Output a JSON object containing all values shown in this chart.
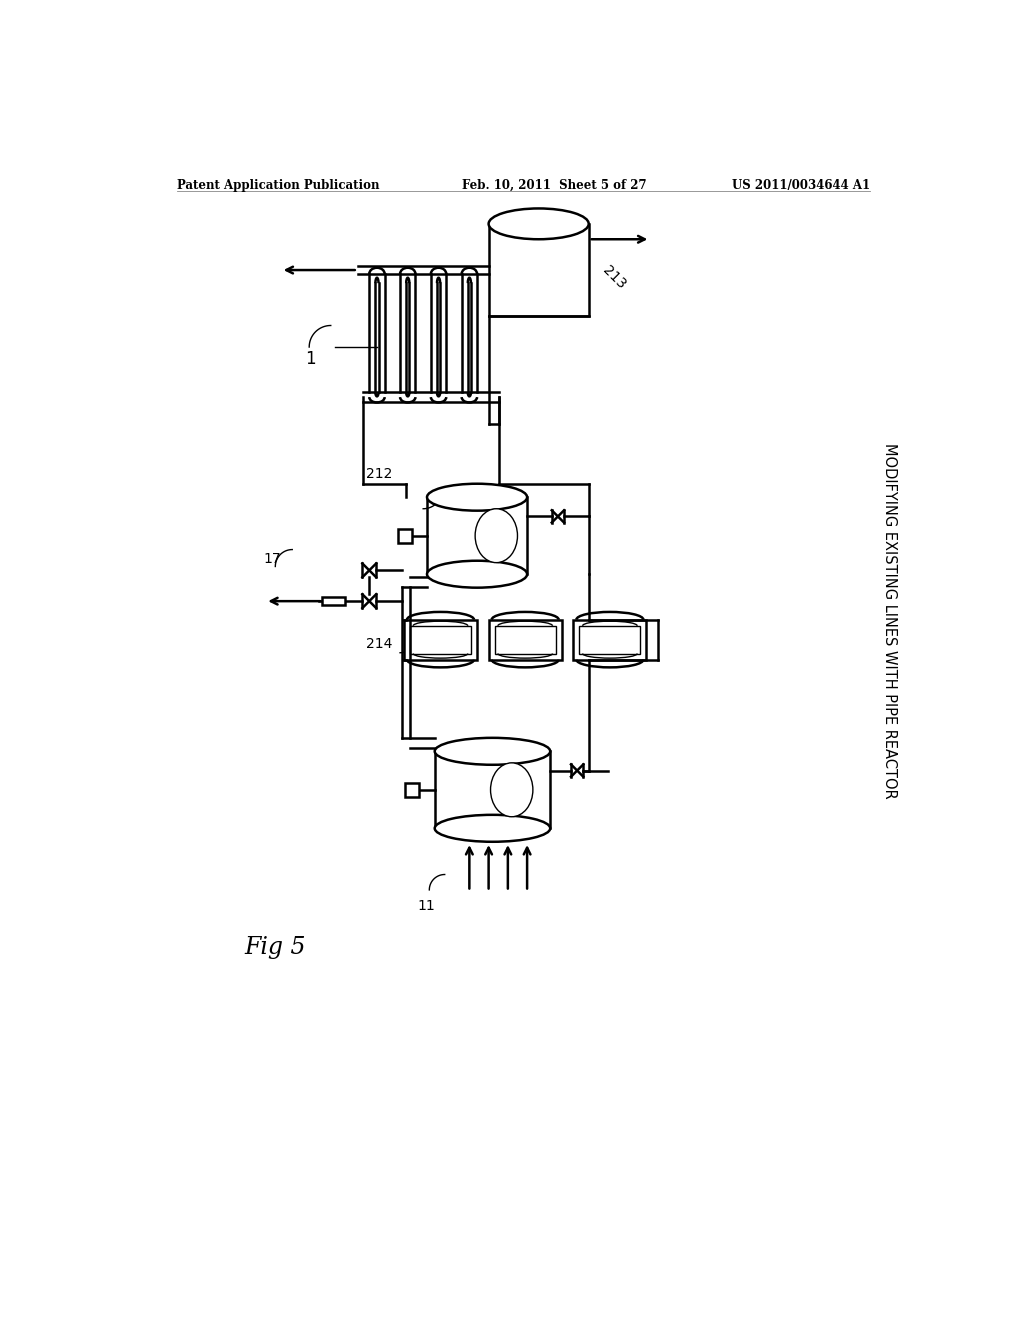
{
  "title_header_left": "Patent Application Publication",
  "title_header_mid": "Feb. 10, 2011  Sheet 5 of 27",
  "title_header_right": "US 2011/0034644 A1",
  "fig_label": "Fig 5",
  "side_title": "MODIFYING EXISTING LINES WITH PIPE REACTOR",
  "bg_color": "#ffffff",
  "line_color": "#000000",
  "lw": 1.8,
  "lw_thin": 1.0,
  "lw_thick": 2.5
}
